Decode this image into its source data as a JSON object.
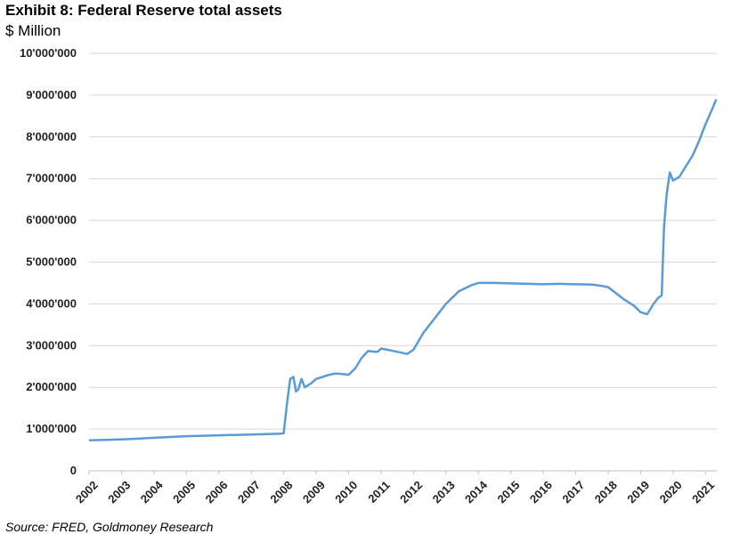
{
  "title": "Exhibit 8: Federal Reserve total assets",
  "subtitle": "$ Million",
  "source": "Source: FRED, Goldmoney Research",
  "chart_data": {
    "type": "line",
    "title": "Exhibit 8: Federal Reserve total assets",
    "ylabel": "$ Million",
    "xlabel": "",
    "ylim": [
      0,
      10000000
    ],
    "xlim": [
      2002.0,
      2021.35
    ],
    "grid": true,
    "legend": "none",
    "line_color": "#5b9bd5",
    "y_ticks": [
      {
        "value": 0,
        "label": "0"
      },
      {
        "value": 1000000,
        "label": "1'000'000"
      },
      {
        "value": 2000000,
        "label": "2'000'000"
      },
      {
        "value": 3000000,
        "label": "3'000'000"
      },
      {
        "value": 4000000,
        "label": "4'000'000"
      },
      {
        "value": 5000000,
        "label": "5'000'000"
      },
      {
        "value": 6000000,
        "label": "6'000'000"
      },
      {
        "value": 7000000,
        "label": "7'000'000"
      },
      {
        "value": 8000000,
        "label": "8'000'000"
      },
      {
        "value": 9000000,
        "label": "9'000'000"
      },
      {
        "value": 10000000,
        "label": "10'000'000"
      }
    ],
    "x_ticks": [
      {
        "value": 2002,
        "label": "2002"
      },
      {
        "value": 2003,
        "label": "2003"
      },
      {
        "value": 2004,
        "label": "2004"
      },
      {
        "value": 2005,
        "label": "2005"
      },
      {
        "value": 2006,
        "label": "2006"
      },
      {
        "value": 2007,
        "label": "2007"
      },
      {
        "value": 2008,
        "label": "2008"
      },
      {
        "value": 2009,
        "label": "2009"
      },
      {
        "value": 2010,
        "label": "2010"
      },
      {
        "value": 2011,
        "label": "2011"
      },
      {
        "value": 2012,
        "label": "2012"
      },
      {
        "value": 2013,
        "label": "2013"
      },
      {
        "value": 2014,
        "label": "2014"
      },
      {
        "value": 2015,
        "label": "2015"
      },
      {
        "value": 2016,
        "label": "2016"
      },
      {
        "value": 2017,
        "label": "2017"
      },
      {
        "value": 2018,
        "label": "2018"
      },
      {
        "value": 2019,
        "label": "2019"
      },
      {
        "value": 2020,
        "label": "2020"
      },
      {
        "value": 2021,
        "label": "2021"
      }
    ],
    "series": [
      {
        "x": [
          2002.0,
          2002.5,
          2003.0,
          2003.5,
          2004.0,
          2004.5,
          2005.0,
          2005.5,
          2006.0,
          2006.5,
          2007.0,
          2007.5,
          2007.9,
          2008.0,
          2008.1,
          2008.2,
          2008.3,
          2008.38,
          2008.45,
          2008.55,
          2008.65,
          2008.75,
          2008.85,
          2009.0,
          2009.2,
          2009.4,
          2009.6,
          2009.8,
          2010.0,
          2010.2,
          2010.4,
          2010.6,
          2010.8,
          2010.9,
          2011.0,
          2011.2,
          2011.5,
          2011.8,
          2012.0,
          2012.3,
          2012.6,
          2013.0,
          2013.4,
          2013.8,
          2014.0,
          2014.5,
          2015.0,
          2015.5,
          2016.0,
          2016.5,
          2017.0,
          2017.5,
          2017.8,
          2018.0,
          2018.5,
          2018.8,
          2019.0,
          2019.2,
          2019.4,
          2019.55,
          2019.65,
          2019.72,
          2019.8,
          2019.9,
          2020.0,
          2020.2,
          2020.4,
          2020.6,
          2020.8,
          2021.0,
          2021.2,
          2021.33
        ],
        "y": [
          730000,
          740000,
          750000,
          770000,
          790000,
          810000,
          830000,
          840000,
          850000,
          860000,
          870000,
          880000,
          890000,
          900000,
          1600000,
          2200000,
          2250000,
          1900000,
          1950000,
          2200000,
          2000000,
          2050000,
          2100000,
          2200000,
          2250000,
          2300000,
          2330000,
          2320000,
          2300000,
          2450000,
          2700000,
          2870000,
          2850000,
          2850000,
          2930000,
          2900000,
          2850000,
          2800000,
          2900000,
          3300000,
          3600000,
          4000000,
          4300000,
          4450000,
          4500000,
          4500000,
          4490000,
          4480000,
          4470000,
          4480000,
          4470000,
          4460000,
          4430000,
          4400000,
          4100000,
          3950000,
          3800000,
          3750000,
          4000000,
          4150000,
          4200000,
          5800000,
          6600000,
          7150000,
          6950000,
          7050000,
          7300000,
          7550000,
          7900000,
          8300000,
          8650000,
          8900000
        ]
      }
    ]
  }
}
